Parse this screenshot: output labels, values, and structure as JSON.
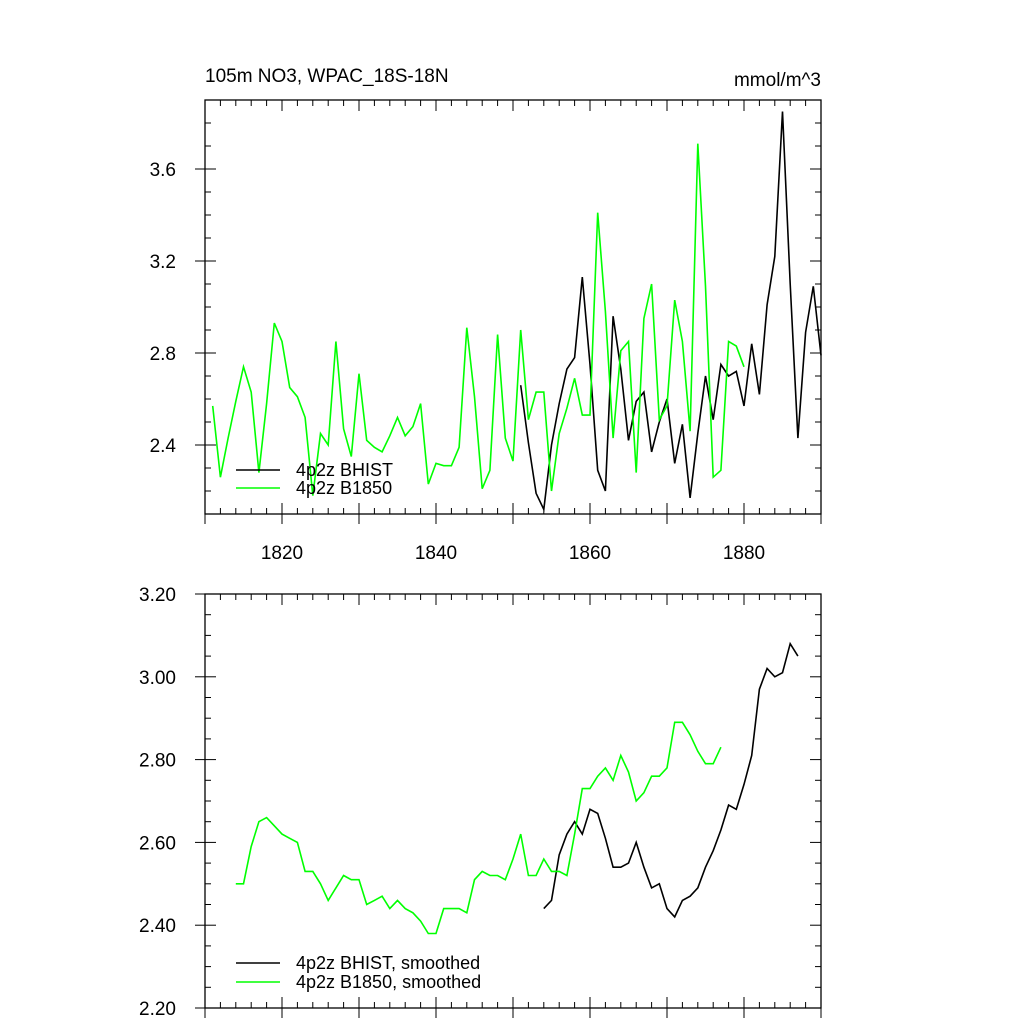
{
  "chart_data": [
    {
      "type": "line",
      "title_left": "105m NO3, WPAC_18S-18N",
      "title_right": "mmol/m^3",
      "xlabel": "",
      "ylabel": "",
      "xlim": [
        1810,
        1890
      ],
      "ylim": [
        2.1,
        3.9
      ],
      "xticks": [
        1820,
        1840,
        1860,
        1880
      ],
      "xtick_labels": [
        "1820",
        "1840",
        "1860",
        "1880"
      ],
      "yticks": [
        2.4,
        2.8,
        3.2,
        3.6
      ],
      "ytick_labels": [
        "2.4",
        "2.8",
        "3.2",
        "3.6"
      ],
      "grid": false,
      "legend_position": "bottom-left",
      "series": [
        {
          "name": "4p2z BHIST",
          "color": "#000000",
          "x": [
            1851,
            1852,
            1853,
            1854,
            1855,
            1856,
            1857,
            1858,
            1859,
            1860,
            1861,
            1862,
            1863,
            1864,
            1865,
            1866,
            1867,
            1868,
            1869,
            1870,
            1871,
            1872,
            1873,
            1874,
            1875,
            1876,
            1877,
            1878,
            1879,
            1880,
            1881,
            1882,
            1883,
            1884,
            1885,
            1886,
            1887,
            1888,
            1889,
            1890
          ],
          "y": [
            2.66,
            2.41,
            2.19,
            2.12,
            2.4,
            2.58,
            2.73,
            2.78,
            3.13,
            2.75,
            2.29,
            2.2,
            2.96,
            2.73,
            2.42,
            2.59,
            2.63,
            2.37,
            2.5,
            2.6,
            2.32,
            2.49,
            2.17,
            2.45,
            2.7,
            2.51,
            2.75,
            2.7,
            2.72,
            2.57,
            2.84,
            2.62,
            3.01,
            3.22,
            3.85,
            3.1,
            2.43,
            2.89,
            3.09,
            2.79
          ]
        },
        {
          "name": "4p2z B1850",
          "color": "#00ff00",
          "x": [
            1811,
            1812,
            1813,
            1814,
            1815,
            1816,
            1817,
            1818,
            1819,
            1820,
            1821,
            1822,
            1823,
            1824,
            1825,
            1826,
            1827,
            1828,
            1829,
            1830,
            1831,
            1832,
            1833,
            1834,
            1835,
            1836,
            1837,
            1838,
            1839,
            1840,
            1841,
            1842,
            1843,
            1844,
            1845,
            1846,
            1847,
            1848,
            1849,
            1850,
            1851,
            1852,
            1853,
            1854,
            1855,
            1856,
            1857,
            1858,
            1859,
            1860,
            1861,
            1862,
            1863,
            1864,
            1865,
            1866,
            1867,
            1868,
            1869,
            1870,
            1871,
            1872,
            1873,
            1874,
            1875,
            1876,
            1877,
            1878,
            1879,
            1880
          ],
          "y": [
            2.57,
            2.26,
            2.43,
            2.59,
            2.74,
            2.63,
            2.28,
            2.58,
            2.93,
            2.85,
            2.65,
            2.61,
            2.52,
            2.18,
            2.45,
            2.4,
            2.85,
            2.47,
            2.35,
            2.71,
            2.42,
            2.39,
            2.37,
            2.44,
            2.52,
            2.44,
            2.48,
            2.58,
            2.23,
            2.32,
            2.31,
            2.31,
            2.39,
            2.91,
            2.61,
            2.21,
            2.29,
            2.88,
            2.43,
            2.33,
            2.9,
            2.51,
            2.63,
            2.63,
            2.2,
            2.45,
            2.56,
            2.69,
            2.53,
            2.53,
            3.41,
            2.98,
            2.43,
            2.81,
            2.85,
            2.28,
            2.95,
            3.1,
            2.51,
            2.57,
            3.03,
            2.85,
            2.46,
            3.71,
            3.09,
            2.26,
            2.29,
            2.85,
            2.83,
            2.74
          ]
        }
      ]
    },
    {
      "type": "line",
      "title": "",
      "xlabel": "",
      "ylabel": "",
      "xlim": [
        1810,
        1890
      ],
      "ylim": [
        2.2,
        3.2
      ],
      "yticks": [
        2.2,
        2.4,
        2.6,
        2.8,
        3.0,
        3.2
      ],
      "ytick_labels": [
        "2.20",
        "2.40",
        "2.60",
        "2.80",
        "3.00",
        "3.20"
      ],
      "xticks": [
        1820,
        1840,
        1860,
        1880
      ],
      "grid": false,
      "legend_position": "bottom-left",
      "series": [
        {
          "name": "4p2z BHIST, smoothed",
          "color": "#000000",
          "x": [
            1854,
            1855,
            1856,
            1857,
            1858,
            1859,
            1860,
            1861,
            1862,
            1863,
            1864,
            1865,
            1866,
            1867,
            1868,
            1869,
            1870,
            1871,
            1872,
            1873,
            1874,
            1875,
            1876,
            1877,
            1878,
            1879,
            1880,
            1881,
            1882,
            1883,
            1884,
            1885,
            1886,
            1887
          ],
          "y": [
            2.44,
            2.46,
            2.57,
            2.62,
            2.65,
            2.62,
            2.68,
            2.67,
            2.61,
            2.54,
            2.54,
            2.55,
            2.6,
            2.54,
            2.49,
            2.5,
            2.44,
            2.42,
            2.46,
            2.47,
            2.49,
            2.54,
            2.58,
            2.63,
            2.69,
            2.68,
            2.74,
            2.81,
            2.97,
            3.02,
            3.0,
            3.01,
            3.08,
            3.05
          ]
        },
        {
          "name": "4p2z B1850, smoothed",
          "color": "#00ff00",
          "x": [
            1814,
            1815,
            1816,
            1817,
            1818,
            1819,
            1820,
            1821,
            1822,
            1823,
            1824,
            1825,
            1826,
            1827,
            1828,
            1829,
            1830,
            1831,
            1832,
            1833,
            1834,
            1835,
            1836,
            1837,
            1838,
            1839,
            1840,
            1841,
            1842,
            1843,
            1844,
            1845,
            1846,
            1847,
            1848,
            1849,
            1850,
            1851,
            1852,
            1853,
            1854,
            1855,
            1856,
            1857,
            1858,
            1859,
            1860,
            1861,
            1862,
            1863,
            1864,
            1865,
            1866,
            1867,
            1868,
            1869,
            1870,
            1871,
            1872,
            1873,
            1874,
            1875,
            1876,
            1877
          ],
          "y": [
            2.5,
            2.5,
            2.59,
            2.65,
            2.66,
            2.64,
            2.62,
            2.61,
            2.6,
            2.53,
            2.53,
            2.5,
            2.46,
            2.49,
            2.52,
            2.51,
            2.51,
            2.45,
            2.46,
            2.47,
            2.44,
            2.46,
            2.44,
            2.43,
            2.41,
            2.38,
            2.38,
            2.44,
            2.44,
            2.44,
            2.43,
            2.51,
            2.53,
            2.52,
            2.52,
            2.51,
            2.56,
            2.62,
            2.52,
            2.52,
            2.56,
            2.53,
            2.53,
            2.52,
            2.62,
            2.73,
            2.73,
            2.76,
            2.78,
            2.75,
            2.81,
            2.77,
            2.7,
            2.72,
            2.76,
            2.76,
            2.78,
            2.89,
            2.89,
            2.86,
            2.82,
            2.79,
            2.79,
            2.83
          ]
        }
      ]
    }
  ]
}
